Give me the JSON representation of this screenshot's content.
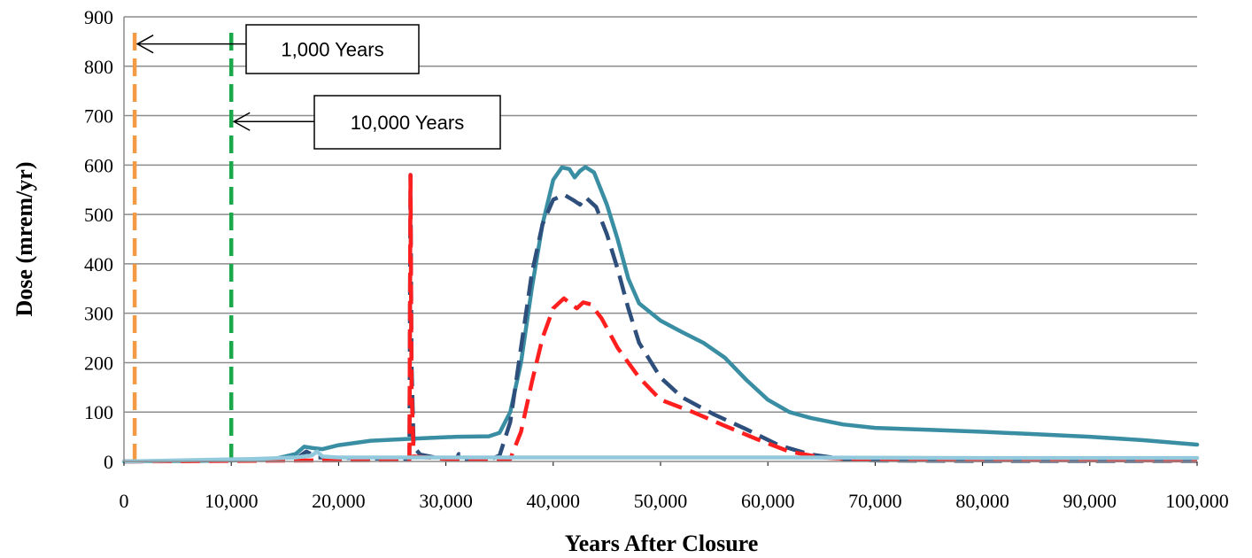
{
  "chart_data": {
    "type": "line",
    "title": "",
    "xlabel": "Years After Closure",
    "ylabel": "Dose (mrem/yr)",
    "xlim": [
      0,
      100000
    ],
    "ylim": [
      0,
      900
    ],
    "x_ticks": [
      0,
      10000,
      20000,
      30000,
      40000,
      50000,
      60000,
      70000,
      80000,
      90000,
      100000
    ],
    "x_tick_labels": [
      "0",
      "10,000",
      "20,000",
      "30,000",
      "40,000",
      "50,000",
      "60,000",
      "70,000",
      "80,000",
      "90,000",
      "100,000"
    ],
    "y_ticks": [
      0,
      100,
      200,
      300,
      400,
      500,
      600,
      700,
      800,
      900
    ],
    "y_tick_labels": [
      "0",
      "100",
      "200",
      "300",
      "400",
      "500",
      "600",
      "700",
      "800",
      "900"
    ],
    "grid": {
      "horizontal": true,
      "vertical": false
    },
    "legend": "none",
    "series": [
      {
        "color": "#3a8ea4",
        "style": "solid",
        "points": [
          [
            0,
            0
          ],
          [
            10000,
            2
          ],
          [
            14000,
            5
          ],
          [
            16000,
            15
          ],
          [
            16800,
            30
          ],
          [
            17600,
            27
          ],
          [
            18500,
            25
          ],
          [
            20000,
            33
          ],
          [
            23000,
            42
          ],
          [
            27000,
            46
          ],
          [
            31000,
            50
          ],
          [
            34000,
            51
          ],
          [
            35000,
            58
          ],
          [
            36000,
            100
          ],
          [
            37000,
            200
          ],
          [
            38000,
            350
          ],
          [
            39000,
            480
          ],
          [
            40000,
            570
          ],
          [
            40800,
            595
          ],
          [
            41500,
            592
          ],
          [
            42000,
            575
          ],
          [
            42500,
            588
          ],
          [
            43000,
            596
          ],
          [
            43800,
            585
          ],
          [
            45000,
            520
          ],
          [
            46000,
            450
          ],
          [
            47000,
            370
          ],
          [
            48000,
            320
          ],
          [
            50000,
            285
          ],
          [
            52000,
            262
          ],
          [
            54000,
            240
          ],
          [
            56000,
            210
          ],
          [
            58000,
            165
          ],
          [
            60000,
            125
          ],
          [
            62000,
            100
          ],
          [
            64000,
            88
          ],
          [
            67000,
            75
          ],
          [
            70000,
            68
          ],
          [
            75000,
            64
          ],
          [
            80000,
            60
          ],
          [
            85000,
            55
          ],
          [
            90000,
            50
          ],
          [
            95000,
            43
          ],
          [
            100000,
            34
          ]
        ]
      },
      {
        "color": "#2e4f7c",
        "style": "dashed",
        "points": [
          [
            0,
            0
          ],
          [
            10000,
            2
          ],
          [
            16000,
            5
          ],
          [
            17000,
            20
          ],
          [
            18000,
            8
          ],
          [
            26600,
            5
          ],
          [
            26700,
            580
          ],
          [
            26800,
            200
          ],
          [
            27000,
            30
          ],
          [
            27600,
            14
          ],
          [
            29000,
            8
          ],
          [
            31000,
            5
          ],
          [
            31200,
            15
          ],
          [
            31400,
            5
          ],
          [
            34000,
            3
          ],
          [
            35000,
            12
          ],
          [
            36000,
            80
          ],
          [
            37000,
            230
          ],
          [
            38000,
            380
          ],
          [
            39000,
            480
          ],
          [
            40000,
            530
          ],
          [
            41000,
            540
          ],
          [
            41800,
            530
          ],
          [
            42500,
            520
          ],
          [
            43000,
            535
          ],
          [
            44000,
            515
          ],
          [
            45000,
            460
          ],
          [
            46000,
            390
          ],
          [
            47000,
            310
          ],
          [
            48000,
            240
          ],
          [
            50000,
            170
          ],
          [
            52000,
            130
          ],
          [
            55000,
            95
          ],
          [
            58000,
            65
          ],
          [
            61000,
            33
          ],
          [
            64000,
            14
          ],
          [
            67000,
            5
          ],
          [
            70000,
            2
          ],
          [
            80000,
            1
          ],
          [
            100000,
            1
          ]
        ]
      },
      {
        "color": "#ff1f1f",
        "style": "dashed",
        "points": [
          [
            0,
            0
          ],
          [
            26600,
            3
          ],
          [
            26700,
            580
          ],
          [
            26800,
            150
          ],
          [
            27000,
            10
          ],
          [
            30000,
            5
          ],
          [
            36000,
            5
          ],
          [
            37000,
            60
          ],
          [
            38000,
            160
          ],
          [
            39000,
            250
          ],
          [
            40000,
            310
          ],
          [
            41000,
            330
          ],
          [
            41700,
            318
          ],
          [
            42200,
            310
          ],
          [
            42800,
            322
          ],
          [
            43500,
            318
          ],
          [
            44500,
            290
          ],
          [
            46000,
            230
          ],
          [
            48000,
            170
          ],
          [
            50000,
            125
          ],
          [
            53000,
            100
          ],
          [
            56000,
            72
          ],
          [
            59000,
            45
          ],
          [
            62000,
            20
          ],
          [
            65000,
            8
          ],
          [
            70000,
            3
          ],
          [
            100000,
            2
          ]
        ]
      },
      {
        "color": "#93c9dc",
        "style": "solid",
        "points": [
          [
            0,
            0
          ],
          [
            12000,
            5
          ],
          [
            16000,
            8
          ],
          [
            17500,
            12
          ],
          [
            18000,
            20
          ],
          [
            18500,
            10
          ],
          [
            20000,
            8
          ],
          [
            40000,
            8
          ],
          [
            60000,
            8
          ],
          [
            80000,
            7
          ],
          [
            100000,
            7
          ]
        ]
      },
      {
        "color": "#f39a45",
        "style": "dashed",
        "points": [
          [
            1000,
            0
          ],
          [
            1000,
            880
          ]
        ]
      },
      {
        "color": "#1aa84a",
        "style": "dashed",
        "points": [
          [
            10000,
            0
          ],
          [
            10000,
            880
          ]
        ]
      }
    ],
    "annotations": [
      {
        "text": "1,000 Years",
        "points_to": [
          1000,
          845
        ]
      },
      {
        "text": "10,000 Years",
        "points_to": [
          10000,
          688
        ]
      }
    ]
  }
}
